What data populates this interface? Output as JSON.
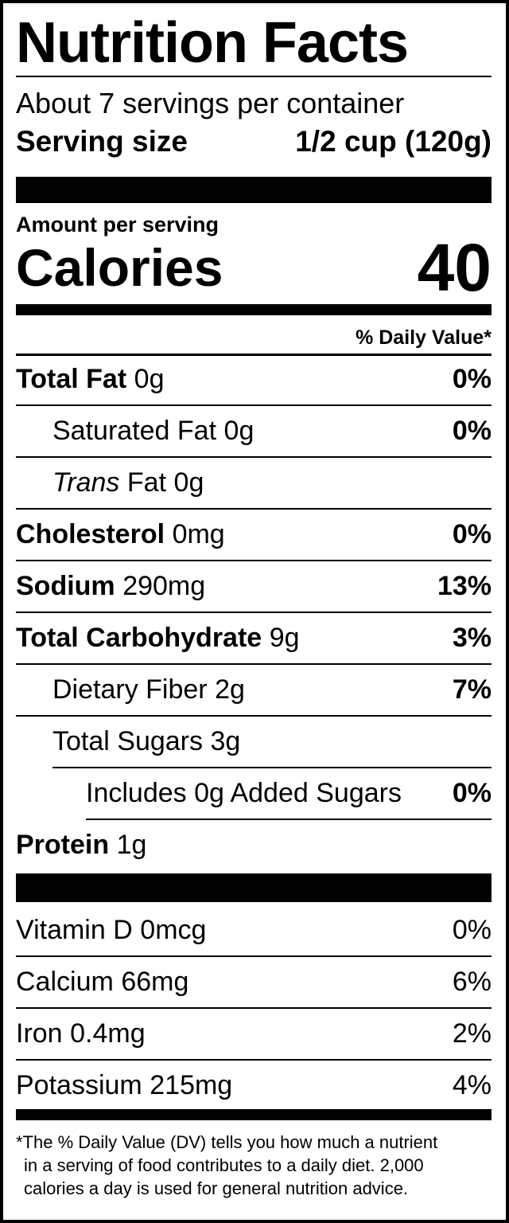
{
  "header": {
    "title": "Nutrition Facts",
    "servings": "About 7 servings per container",
    "serving_size_label": "Serving size",
    "serving_size": "1/2 cup (120g)"
  },
  "calories": {
    "amount_label": "Amount per serving",
    "label": "Calories",
    "value": "40"
  },
  "dv_header": "% Daily Value*",
  "nutrients": [
    {
      "name": "Total Fat",
      "amount": "0g",
      "dv": "0%"
    },
    {
      "name": "Saturated Fat",
      "amount": "0g",
      "dv": "0%"
    },
    {
      "name_italic": "Trans",
      "name": "Fat",
      "amount": "0g"
    },
    {
      "name": "Cholesterol",
      "amount": "0mg",
      "dv": "0%"
    },
    {
      "name": "Sodium",
      "amount": "290mg",
      "dv": "13%"
    },
    {
      "name": "Total Carbohydrate",
      "amount": "9g",
      "dv": "3%"
    },
    {
      "name": "Dietary Fiber",
      "amount": "2g",
      "dv": "7%"
    },
    {
      "name": "Total Sugars",
      "amount": "3g"
    },
    {
      "name": "Includes 0g Added Sugars",
      "dv": "0%"
    },
    {
      "name": "Protein",
      "amount": "1g"
    }
  ],
  "vitamins": [
    {
      "name": "Vitamin D",
      "amount": "0mcg",
      "dv": "0%"
    },
    {
      "name": "Calcium",
      "amount": "66mg",
      "dv": "6%"
    },
    {
      "name": "Iron",
      "amount": "0.4mg",
      "dv": "2%"
    },
    {
      "name": "Potassium",
      "amount": "215mg",
      "dv": "4%"
    }
  ],
  "footnote": [
    "*The % Daily Value (DV) tells you how much a nutrient",
    "in a serving of food contributes to a daily diet. 2,000",
    "calories a day is used for general nutrition advice."
  ]
}
